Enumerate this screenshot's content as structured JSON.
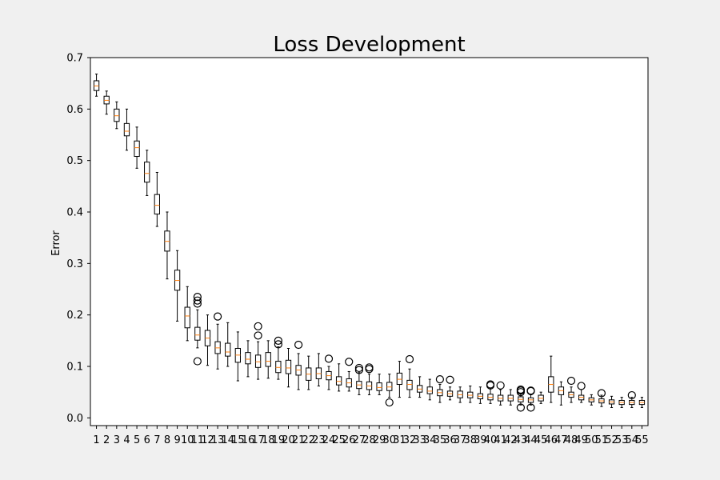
{
  "colors": {
    "figure_background": "#f0f0f0",
    "plot_background": "#ffffff",
    "box_edge": "#000000",
    "median": "#ff7f0e",
    "outlier_edge": "#000000"
  },
  "chart_data": {
    "type": "boxplot",
    "title": "Loss Development",
    "xlabel": "",
    "ylabel": "Error",
    "ylim": [
      -0.015,
      0.7
    ],
    "yticks": [
      0.0,
      0.1,
      0.2,
      0.3,
      0.4,
      0.5,
      0.6,
      0.7
    ],
    "ytick_labels": [
      "0.0",
      "0.1",
      "0.2",
      "0.3",
      "0.4",
      "0.5",
      "0.6",
      "0.7"
    ],
    "grid": false,
    "categories": [
      "1",
      "2",
      "3",
      "4",
      "5",
      "6",
      "7",
      "8",
      "9",
      "10",
      "11",
      "12",
      "13",
      "14",
      "15",
      "16",
      "17",
      "18",
      "19",
      "20",
      "21",
      "22",
      "23",
      "24",
      "25",
      "26",
      "27",
      "28",
      "29",
      "30",
      "31",
      "32",
      "33",
      "34",
      "35",
      "36",
      "37",
      "38",
      "39",
      "40",
      "41",
      "42",
      "43",
      "44",
      "45",
      "46",
      "47",
      "48",
      "49",
      "50",
      "51",
      "52",
      "53",
      "54",
      "55"
    ],
    "boxes": [
      {
        "whislo": 0.625,
        "q1": 0.636,
        "med": 0.645,
        "q3": 0.655,
        "whishi": 0.668,
        "fliers": []
      },
      {
        "whislo": 0.59,
        "q1": 0.61,
        "med": 0.617,
        "q3": 0.625,
        "whishi": 0.635,
        "fliers": []
      },
      {
        "whislo": 0.562,
        "q1": 0.576,
        "med": 0.587,
        "q3": 0.6,
        "whishi": 0.614,
        "fliers": []
      },
      {
        "whislo": 0.52,
        "q1": 0.548,
        "med": 0.557,
        "q3": 0.572,
        "whishi": 0.6,
        "fliers": []
      },
      {
        "whislo": 0.485,
        "q1": 0.508,
        "med": 0.525,
        "q3": 0.538,
        "whishi": 0.565,
        "fliers": []
      },
      {
        "whislo": 0.432,
        "q1": 0.458,
        "med": 0.475,
        "q3": 0.497,
        "whishi": 0.52,
        "fliers": []
      },
      {
        "whislo": 0.372,
        "q1": 0.396,
        "med": 0.413,
        "q3": 0.434,
        "whishi": 0.477,
        "fliers": []
      },
      {
        "whislo": 0.27,
        "q1": 0.324,
        "med": 0.343,
        "q3": 0.363,
        "whishi": 0.4,
        "fliers": []
      },
      {
        "whislo": 0.188,
        "q1": 0.248,
        "med": 0.267,
        "q3": 0.287,
        "whishi": 0.325,
        "fliers": []
      },
      {
        "whislo": 0.15,
        "q1": 0.175,
        "med": 0.198,
        "q3": 0.215,
        "whishi": 0.255,
        "fliers": []
      },
      {
        "whislo": 0.136,
        "q1": 0.151,
        "med": 0.161,
        "q3": 0.176,
        "whishi": 0.21,
        "fliers": [
          0.11,
          0.222,
          0.228,
          0.235
        ]
      },
      {
        "whislo": 0.102,
        "q1": 0.14,
        "med": 0.155,
        "q3": 0.17,
        "whishi": 0.2,
        "fliers": []
      },
      {
        "whislo": 0.095,
        "q1": 0.125,
        "med": 0.136,
        "q3": 0.148,
        "whishi": 0.182,
        "fliers": [
          0.197
        ]
      },
      {
        "whislo": 0.1,
        "q1": 0.12,
        "med": 0.128,
        "q3": 0.145,
        "whishi": 0.185,
        "fliers": []
      },
      {
        "whislo": 0.072,
        "q1": 0.108,
        "med": 0.122,
        "q3": 0.135,
        "whishi": 0.167,
        "fliers": []
      },
      {
        "whislo": 0.08,
        "q1": 0.105,
        "med": 0.114,
        "q3": 0.127,
        "whishi": 0.15,
        "fliers": []
      },
      {
        "whislo": 0.075,
        "q1": 0.098,
        "med": 0.109,
        "q3": 0.122,
        "whishi": 0.148,
        "fliers": [
          0.16,
          0.178
        ]
      },
      {
        "whislo": 0.077,
        "q1": 0.1,
        "med": 0.11,
        "q3": 0.127,
        "whishi": 0.15,
        "fliers": []
      },
      {
        "whislo": 0.075,
        "q1": 0.088,
        "med": 0.098,
        "q3": 0.11,
        "whishi": 0.138,
        "fliers": [
          0.143,
          0.15
        ]
      },
      {
        "whislo": 0.06,
        "q1": 0.086,
        "med": 0.097,
        "q3": 0.112,
        "whishi": 0.135,
        "fliers": []
      },
      {
        "whislo": 0.055,
        "q1": 0.083,
        "med": 0.093,
        "q3": 0.102,
        "whishi": 0.125,
        "fliers": [
          0.142
        ]
      },
      {
        "whislo": 0.055,
        "q1": 0.073,
        "med": 0.085,
        "q3": 0.097,
        "whishi": 0.12,
        "fliers": []
      },
      {
        "whislo": 0.062,
        "q1": 0.076,
        "med": 0.086,
        "q3": 0.097,
        "whishi": 0.125,
        "fliers": []
      },
      {
        "whislo": 0.055,
        "q1": 0.074,
        "med": 0.082,
        "q3": 0.09,
        "whishi": 0.1,
        "fliers": [
          0.115
        ]
      },
      {
        "whislo": 0.052,
        "q1": 0.064,
        "med": 0.071,
        "q3": 0.08,
        "whishi": 0.105,
        "fliers": []
      },
      {
        "whislo": 0.052,
        "q1": 0.06,
        "med": 0.068,
        "q3": 0.076,
        "whishi": 0.09,
        "fliers": [
          0.109
        ]
      },
      {
        "whislo": 0.045,
        "q1": 0.057,
        "med": 0.064,
        "q3": 0.071,
        "whishi": 0.088,
        "fliers": [
          0.093,
          0.097
        ]
      },
      {
        "whislo": 0.045,
        "q1": 0.055,
        "med": 0.062,
        "q3": 0.07,
        "whishi": 0.085,
        "fliers": [
          0.095,
          0.098
        ]
      },
      {
        "whislo": 0.045,
        "q1": 0.053,
        "med": 0.059,
        "q3": 0.068,
        "whishi": 0.085,
        "fliers": []
      },
      {
        "whislo": 0.04,
        "q1": 0.053,
        "med": 0.06,
        "q3": 0.069,
        "whishi": 0.085,
        "fliers": [
          0.03
        ]
      },
      {
        "whislo": 0.04,
        "q1": 0.065,
        "med": 0.075,
        "q3": 0.087,
        "whishi": 0.11,
        "fliers": []
      },
      {
        "whislo": 0.04,
        "q1": 0.055,
        "med": 0.065,
        "q3": 0.073,
        "whishi": 0.095,
        "fliers": [
          0.114
        ]
      },
      {
        "whislo": 0.04,
        "q1": 0.05,
        "med": 0.056,
        "q3": 0.063,
        "whishi": 0.08,
        "fliers": []
      },
      {
        "whislo": 0.035,
        "q1": 0.047,
        "med": 0.052,
        "q3": 0.06,
        "whishi": 0.075,
        "fliers": []
      },
      {
        "whislo": 0.03,
        "q1": 0.043,
        "med": 0.049,
        "q3": 0.055,
        "whishi": 0.065,
        "fliers": [
          0.075
        ]
      },
      {
        "whislo": 0.035,
        "q1": 0.042,
        "med": 0.047,
        "q3": 0.052,
        "whishi": 0.06,
        "fliers": [
          0.074
        ]
      },
      {
        "whislo": 0.03,
        "q1": 0.039,
        "med": 0.045,
        "q3": 0.052,
        "whishi": 0.06,
        "fliers": []
      },
      {
        "whislo": 0.03,
        "q1": 0.039,
        "med": 0.044,
        "q3": 0.05,
        "whishi": 0.062,
        "fliers": []
      },
      {
        "whislo": 0.028,
        "q1": 0.037,
        "med": 0.042,
        "q3": 0.047,
        "whishi": 0.06,
        "fliers": []
      },
      {
        "whislo": 0.028,
        "q1": 0.035,
        "med": 0.04,
        "q3": 0.046,
        "whishi": 0.058,
        "fliers": [
          0.063,
          0.065
        ]
      },
      {
        "whislo": 0.025,
        "q1": 0.033,
        "med": 0.038,
        "q3": 0.044,
        "whishi": 0.055,
        "fliers": [
          0.063
        ]
      },
      {
        "whislo": 0.025,
        "q1": 0.033,
        "med": 0.038,
        "q3": 0.044,
        "whishi": 0.055,
        "fliers": []
      },
      {
        "whislo": 0.025,
        "q1": 0.031,
        "med": 0.036,
        "q3": 0.041,
        "whishi": 0.047,
        "fliers": [
          0.02,
          0.05,
          0.053,
          0.055
        ]
      },
      {
        "whislo": 0.025,
        "q1": 0.03,
        "med": 0.035,
        "q3": 0.039,
        "whishi": 0.045,
        "fliers": [
          0.02,
          0.052,
          0.053
        ]
      },
      {
        "whislo": 0.028,
        "q1": 0.033,
        "med": 0.038,
        "q3": 0.044,
        "whishi": 0.05,
        "fliers": []
      },
      {
        "whislo": 0.03,
        "q1": 0.05,
        "med": 0.065,
        "q3": 0.08,
        "whishi": 0.12,
        "fliers": []
      },
      {
        "whislo": 0.025,
        "q1": 0.045,
        "med": 0.053,
        "q3": 0.06,
        "whishi": 0.07,
        "fliers": []
      },
      {
        "whislo": 0.03,
        "q1": 0.04,
        "med": 0.045,
        "q3": 0.05,
        "whishi": 0.06,
        "fliers": [
          0.072
        ]
      },
      {
        "whislo": 0.03,
        "q1": 0.035,
        "med": 0.04,
        "q3": 0.044,
        "whishi": 0.055,
        "fliers": [
          0.062
        ]
      },
      {
        "whislo": 0.025,
        "q1": 0.031,
        "med": 0.035,
        "q3": 0.039,
        "whishi": 0.045,
        "fliers": []
      },
      {
        "whislo": 0.022,
        "q1": 0.029,
        "med": 0.033,
        "q3": 0.037,
        "whishi": 0.044,
        "fliers": [
          0.048
        ]
      },
      {
        "whislo": 0.02,
        "q1": 0.027,
        "med": 0.031,
        "q3": 0.035,
        "whishi": 0.042,
        "fliers": []
      },
      {
        "whislo": 0.02,
        "q1": 0.026,
        "med": 0.03,
        "q3": 0.034,
        "whishi": 0.04,
        "fliers": []
      },
      {
        "whislo": 0.02,
        "q1": 0.026,
        "med": 0.03,
        "q3": 0.034,
        "whishi": 0.04,
        "fliers": [
          0.044
        ]
      },
      {
        "whislo": 0.02,
        "q1": 0.026,
        "med": 0.03,
        "q3": 0.034,
        "whishi": 0.04,
        "fliers": []
      }
    ]
  }
}
